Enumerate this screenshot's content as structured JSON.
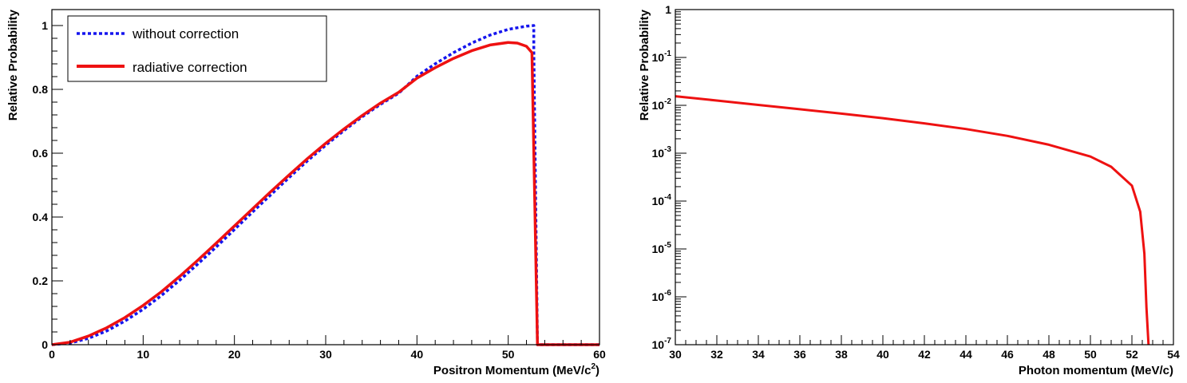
{
  "chart_data": [
    {
      "type": "line",
      "xlabel": "Positron Momentum (MeV/c",
      "xlabel_sup": "2",
      "xlabel_end": ")",
      "ylabel": "Relative Probability",
      "xlim": [
        0,
        60
      ],
      "ylim": [
        0,
        1.05
      ],
      "x_ticks": [
        0,
        10,
        20,
        30,
        40,
        50,
        60
      ],
      "y_ticks": [
        0,
        0.2,
        0.4,
        0.6,
        0.8,
        1
      ],
      "x_tick_labels": [
        "0",
        "10",
        "20",
        "30",
        "40",
        "50",
        "60"
      ],
      "y_tick_labels": [
        "0",
        "0.2",
        "0.4",
        "0.6",
        "0.8",
        "1"
      ],
      "legend_position": "top-left",
      "grid": false,
      "series": [
        {
          "name": "without correction",
          "color": "#1515ee",
          "style": "dotted",
          "x": [
            0,
            2,
            4,
            6,
            8,
            10,
            12,
            14,
            16,
            18,
            20,
            22,
            24,
            26,
            28,
            30,
            32,
            34,
            36,
            38,
            40,
            42,
            44,
            46,
            48,
            50,
            52,
            52.8,
            52.8,
            53.2,
            60
          ],
          "y": [
            0,
            0.005,
            0.02,
            0.043,
            0.074,
            0.111,
            0.154,
            0.202,
            0.253,
            0.306,
            0.361,
            0.416,
            0.47,
            0.524,
            0.576,
            0.625,
            0.671,
            0.714,
            0.753,
            0.788,
            0.841,
            0.88,
            0.915,
            0.945,
            0.97,
            0.988,
            0.998,
            1.0,
            0.92,
            0,
            0
          ]
        },
        {
          "name": "radiative correction",
          "color": "#ee1111",
          "style": "solid",
          "x": [
            0,
            2,
            4,
            6,
            8,
            10,
            12,
            14,
            16,
            18,
            20,
            22,
            24,
            26,
            28,
            30,
            32,
            34,
            36,
            38,
            40,
            42,
            44,
            46,
            48,
            50,
            51,
            52,
            52.6,
            53.2,
            60
          ],
          "y": [
            0,
            0.008,
            0.027,
            0.053,
            0.085,
            0.123,
            0.166,
            0.214,
            0.265,
            0.318,
            0.372,
            0.426,
            0.48,
            0.532,
            0.583,
            0.631,
            0.676,
            0.718,
            0.757,
            0.791,
            0.835,
            0.868,
            0.897,
            0.921,
            0.939,
            0.947,
            0.945,
            0.935,
            0.915,
            0,
            0
          ]
        }
      ]
    },
    {
      "type": "line",
      "xlabel": "Photon momentum (MeV/c)",
      "ylabel": "Relative Probability",
      "xlim": [
        30,
        54
      ],
      "ylim_exp": [
        -7,
        0
      ],
      "y_scale": "log",
      "x_ticks": [
        30,
        32,
        34,
        36,
        38,
        40,
        42,
        44,
        46,
        48,
        50,
        52,
        54
      ],
      "x_tick_labels": [
        "30",
        "32",
        "34",
        "36",
        "38",
        "40",
        "42",
        "44",
        "46",
        "48",
        "50",
        "52",
        "54"
      ],
      "y_tick_labels": [
        {
          "base": "10",
          "exp": "-7"
        },
        {
          "base": "10",
          "exp": "-6"
        },
        {
          "base": "10",
          "exp": "-5"
        },
        {
          "base": "10",
          "exp": "-4"
        },
        {
          "base": "10",
          "exp": "-3"
        },
        {
          "base": "10",
          "exp": "-2"
        },
        {
          "base": "10",
          "exp": "-1"
        },
        {
          "base": "1",
          "exp": ""
        }
      ],
      "grid": false,
      "series": [
        {
          "color": "#ee1111",
          "x": [
            30,
            32,
            34,
            36,
            38,
            40,
            42,
            44,
            46,
            48,
            50,
            51,
            52,
            52.4,
            52.6,
            52.7,
            52.8
          ],
          "y": [
            0.0155,
            0.0126,
            0.0102,
            0.0083,
            0.0067,
            0.0054,
            0.0042,
            0.0032,
            0.0023,
            0.0015,
            0.00085,
            0.00052,
            0.00021,
            6e-05,
            8e-06,
            6e-07,
            1e-07
          ]
        }
      ]
    }
  ]
}
